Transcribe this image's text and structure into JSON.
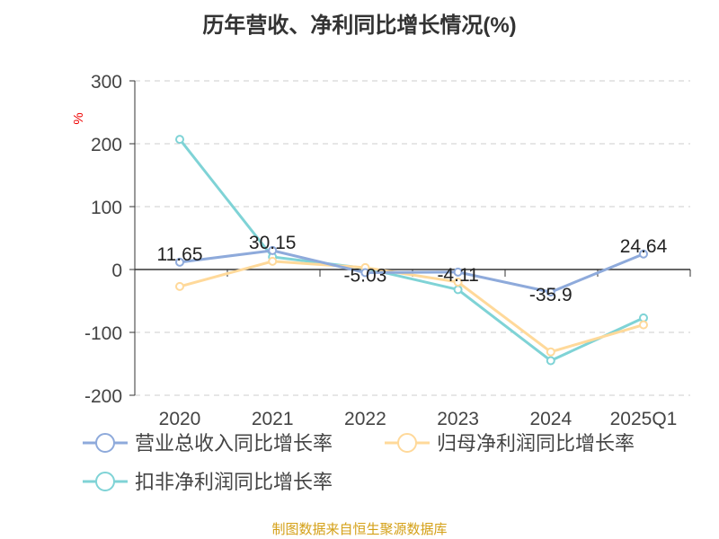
{
  "title": "历年营收、净利同比增长情况(%)",
  "footer": "制图数据来自恒生聚源数据库",
  "chart_data": {
    "type": "line",
    "title": "历年营收、净利同比增长情况(%)",
    "ylabel": "%",
    "ylim": [
      -200,
      300
    ],
    "yticks": [
      300,
      200,
      100,
      0,
      -100,
      -200
    ],
    "grid": true,
    "legend_position": "bottom",
    "categories": [
      "2020",
      "2021",
      "2022",
      "2023",
      "2024",
      "2025Q1"
    ],
    "series": [
      {
        "name": "营业总收入同比增长率",
        "color": "#8eaadb",
        "values": [
          11.65,
          30.15,
          -5.03,
          -4.11,
          -35.9,
          24.64
        ],
        "labels": [
          "11.65",
          "30.15",
          "-5.03",
          "-4.11",
          "-35.9",
          "24.64"
        ]
      },
      {
        "name": "归母净利润同比增长率",
        "color": "#ffd99a",
        "values": [
          -27,
          13,
          3,
          -20,
          -131,
          -88
        ]
      },
      {
        "name": "扣非净利润同比增长率",
        "color": "#7fd3d6",
        "values": [
          207,
          20,
          2,
          -32,
          -145,
          -77
        ]
      }
    ]
  }
}
